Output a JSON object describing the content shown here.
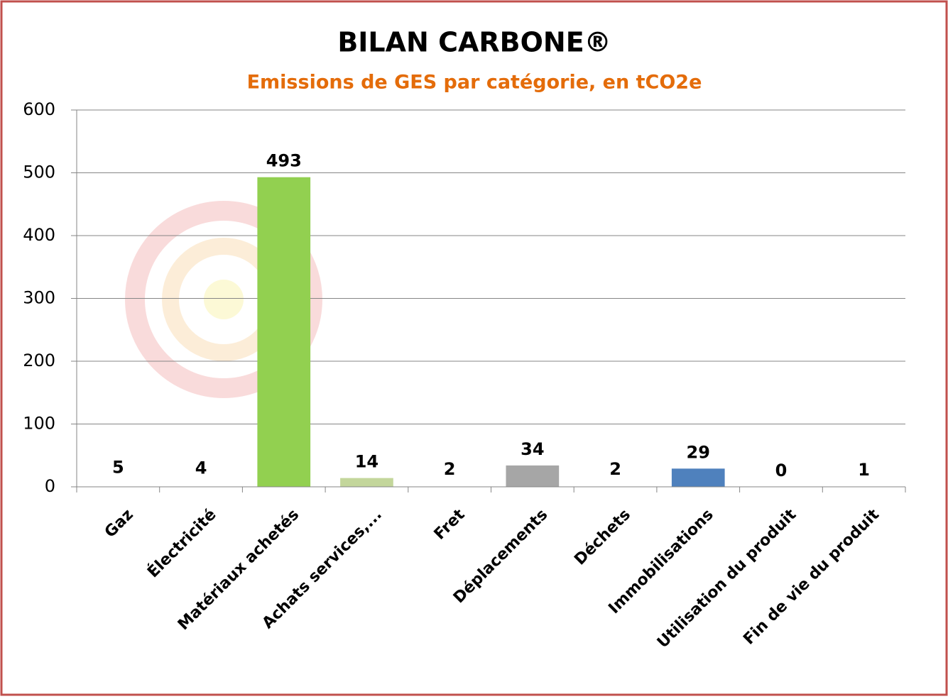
{
  "chart_data": {
    "type": "bar",
    "title": "BILAN CARBONE®",
    "subtitle": "Emissions de GES par catégorie, en tCO2e",
    "categories": [
      "Gaz",
      "Électricité",
      "Matériaux achetés",
      "Achats services,...",
      "Fret",
      "Déplacements",
      "Déchets",
      "Immobilisations",
      "Utilisation du produit",
      "Fin de vie du produit"
    ],
    "values": [
      5,
      4,
      493,
      14,
      2,
      34,
      2,
      29,
      0,
      1
    ],
    "colors": [
      "#ffffff",
      "#ffffff",
      "#92d050",
      "#c3d69b",
      "#ffffff",
      "#a6a6a6",
      "#ffffff",
      "#4f81bd",
      "#ffffff",
      "#ffffff"
    ],
    "ylim": [
      0,
      600
    ],
    "yticks": [
      0,
      100,
      200,
      300,
      400,
      500,
      600
    ],
    "grid": true
  }
}
